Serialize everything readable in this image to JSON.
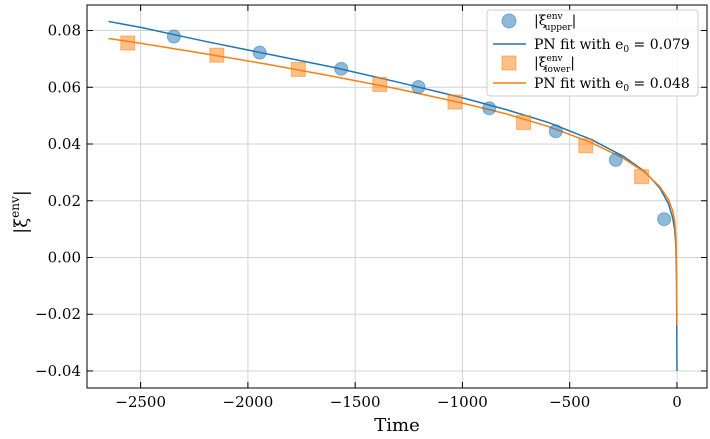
{
  "chart_data": {
    "type": "scatter",
    "title": "",
    "xlabel": "Time",
    "ylabel_main": "|ξ",
    "ylabel_sup": "env",
    "ylabel_close": "|",
    "xlim": [
      -2750,
      140
    ],
    "ylim": [
      -0.046,
      0.089
    ],
    "x_ticks": [
      -2500,
      -2000,
      -1500,
      -1000,
      -500,
      0
    ],
    "x_tick_labels": [
      "−2500",
      "−2000",
      "−1500",
      "−1000",
      "−500",
      "0"
    ],
    "y_ticks": [
      -0.04,
      -0.02,
      0.0,
      0.02,
      0.04,
      0.06,
      0.08
    ],
    "y_tick_labels": [
      "−0.04",
      "−0.02",
      "0.00",
      "0.02",
      "0.04",
      "0.06",
      "0.08"
    ],
    "grid": true,
    "legend_position": "top-right",
    "series": [
      {
        "name": "|ξ env upper|",
        "legend_main": "|ξ",
        "legend_sup": "env",
        "legend_sub": "upper",
        "legend_close": "|",
        "kind": "scatter",
        "marker": "circle",
        "color": "#1f77b4",
        "x": [
          -2345,
          -1945,
          -1565,
          -1205,
          -875,
          -565,
          -285,
          -60
        ],
        "y": [
          0.0779,
          0.0722,
          0.0665,
          0.0601,
          0.0526,
          0.0445,
          0.0344,
          0.0135
        ]
      },
      {
        "name": "PN fit with e0 = 0.079",
        "legend_text": "PN fit with e",
        "legend_sub": "0",
        "legend_value": " = 0.079",
        "kind": "line",
        "color": "#1f77b4",
        "x": [
          -2650,
          -2500,
          -2200,
          -1900,
          -1600,
          -1300,
          -1000,
          -800,
          -600,
          -400,
          -250,
          -150,
          -80,
          -40,
          -20,
          -10,
          -5,
          -2,
          0
        ],
        "y": [
          0.0832,
          0.0811,
          0.0762,
          0.0716,
          0.067,
          0.0618,
          0.0563,
          0.0522,
          0.0476,
          0.0416,
          0.0357,
          0.0303,
          0.0245,
          0.019,
          0.014,
          0.0095,
          0.004,
          -0.008,
          -0.04
        ]
      },
      {
        "name": "|ξ env lower|",
        "legend_main": "|ξ",
        "legend_sup": "env",
        "legend_sub": "lower",
        "legend_close": "|",
        "kind": "scatter",
        "marker": "square",
        "color": "#ff7f0e",
        "x": [
          -2560,
          -2145,
          -1765,
          -1385,
          -1035,
          -715,
          -425,
          -165
        ],
        "y": [
          0.0756,
          0.0713,
          0.0663,
          0.061,
          0.0548,
          0.0476,
          0.0394,
          0.0285
        ]
      },
      {
        "name": "PN fit with e0 = 0.048",
        "legend_text": "PN fit with e",
        "legend_sub": "0",
        "legend_value": " = 0.048",
        "kind": "line",
        "color": "#ff7f0e",
        "x": [
          -2650,
          -2500,
          -2200,
          -1900,
          -1600,
          -1300,
          -1000,
          -800,
          -600,
          -400,
          -250,
          -150,
          -80,
          -40,
          -20,
          -10,
          -5,
          -2,
          0
        ],
        "y": [
          0.0772,
          0.0755,
          0.0718,
          0.068,
          0.0638,
          0.0594,
          0.0544,
          0.0507,
          0.0462,
          0.0405,
          0.035,
          0.03,
          0.025,
          0.0205,
          0.0165,
          0.0125,
          0.007,
          -0.002,
          -0.024
        ]
      }
    ]
  }
}
